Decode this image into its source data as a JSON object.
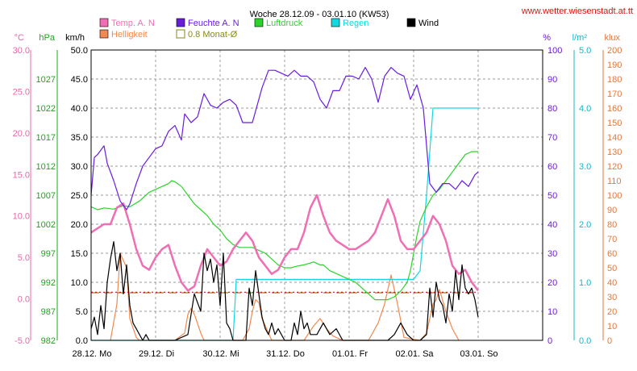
{
  "chart_data": {
    "type": "line",
    "title": "Woche 28.12.09 - 03.01.10 (KW53)",
    "source_url": "www.wetter.wiesenstadt.at.tt",
    "unit_labels": {
      "temp": "°C",
      "pressure": "hPa",
      "wind": "km/h",
      "humidity": "%",
      "rain": "l/m²",
      "lux": "klux"
    },
    "legend": [
      {
        "key": "temp",
        "label": "Temp. A. N",
        "color": "#f06eb4"
      },
      {
        "key": "humidity",
        "label": "Feuchte A. N",
        "color": "#6a1be0"
      },
      {
        "key": "pressure",
        "label": "Luftdruck",
        "color": "#2ad42a"
      },
      {
        "key": "rain",
        "label": "Regen",
        "color": "#12d8e0"
      },
      {
        "key": "wind",
        "label": "Wind",
        "color": "#000000"
      },
      {
        "key": "lux",
        "label": "Helligkeit",
        "color": "#f08a50"
      },
      {
        "key": "avg",
        "label": "0.8 Monat-Ø",
        "color": "#8a8a10"
      }
    ],
    "axes": {
      "temp": {
        "min": -5,
        "max": 30,
        "ticks": [
          "-5.0",
          "0.0",
          "5.0",
          "10.0",
          "15.0",
          "20.0",
          "25.0",
          "30.0"
        ],
        "color": "#e868a8"
      },
      "pressure": {
        "min": 982,
        "max": 1032,
        "ticks": [
          "982",
          "987",
          "992",
          "997",
          "1002",
          "1007",
          "1012",
          "1017",
          "1022",
          "1027"
        ],
        "color": "#1aa81a"
      },
      "wind": {
        "min": 0,
        "max": 50,
        "ticks": [
          "0.0",
          "5.0",
          "10.0",
          "15.0",
          "20.0",
          "25.0",
          "30.0",
          "35.0",
          "40.0",
          "45.0",
          "50.0"
        ],
        "color": "#000000"
      },
      "humidity": {
        "min": 0,
        "max": 100,
        "ticks": [
          "0",
          "10",
          "20",
          "30",
          "40",
          "50",
          "60",
          "70",
          "80",
          "90",
          "100"
        ],
        "color": "#6a1be0"
      },
      "rain": {
        "min": 0,
        "max": 5,
        "ticks": [
          "0.0",
          "1.0",
          "2.0",
          "3.0",
          "4.0",
          "5.0"
        ],
        "color": "#12b8c8"
      },
      "lux": {
        "min": 0,
        "max": 200,
        "ticks": [
          "0",
          "10",
          "20",
          "30",
          "40",
          "50",
          "60",
          "70",
          "80",
          "90",
          "100",
          "110",
          "120",
          "130",
          "140",
          "150",
          "160",
          "170",
          "180",
          "190",
          "200"
        ],
        "color": "#e07840"
      }
    },
    "x_range": [
      0,
      7
    ],
    "x_labels": [
      "28.12.  Mo",
      "29.12.  Di",
      "30.12.  Mi",
      "31.12.  Do",
      "01.01.  Fr",
      "02.01.  Sa",
      "03.01.  So"
    ],
    "grid": true,
    "series": [
      {
        "key": "humidity",
        "x": [
          0.0,
          0.05,
          0.1,
          0.2,
          0.25,
          0.35,
          0.45,
          0.55,
          0.6,
          0.7,
          0.8,
          0.9,
          1.0,
          1.1,
          1.2,
          1.3,
          1.4,
          1.45,
          1.55,
          1.65,
          1.75,
          1.85,
          1.95,
          2.05,
          2.15,
          2.25,
          2.35,
          2.5,
          2.65,
          2.75,
          2.85,
          2.95,
          3.05,
          3.15,
          3.25,
          3.35,
          3.45,
          3.55,
          3.65,
          3.75,
          3.85,
          3.95,
          4.05,
          4.15,
          4.25,
          4.35,
          4.45,
          4.55,
          4.65,
          4.75,
          4.85,
          4.95,
          5.05,
          5.15,
          5.25,
          5.35,
          5.45,
          5.55,
          5.65,
          5.75,
          5.85,
          5.95,
          6.0
        ],
        "y": [
          50,
          63,
          64,
          67,
          61,
          55,
          48,
          45,
          47,
          54,
          60,
          63,
          66,
          67,
          72,
          74,
          69,
          78,
          75,
          77,
          85,
          81,
          80,
          82,
          83,
          81,
          75,
          75,
          87,
          93,
          93,
          92,
          91,
          93,
          91,
          91,
          89,
          83,
          80,
          86,
          86,
          91,
          91,
          90,
          94,
          90,
          82,
          91,
          94,
          92,
          91,
          83,
          88,
          80,
          54,
          51,
          54,
          54,
          52,
          55,
          53,
          57,
          58
        ]
      },
      {
        "key": "pressure",
        "x": [
          0.0,
          0.1,
          0.2,
          0.35,
          0.5,
          0.6,
          0.75,
          0.9,
          1.0,
          1.1,
          1.2,
          1.25,
          1.3,
          1.4,
          1.5,
          1.6,
          1.7,
          1.8,
          1.9,
          2.0,
          2.1,
          2.2,
          2.3,
          2.4,
          2.5,
          2.6,
          2.7,
          2.8,
          2.9,
          3.0,
          3.1,
          3.2,
          3.3,
          3.45,
          3.55,
          3.6,
          3.7,
          3.8,
          3.9,
          4.0,
          4.1,
          4.2,
          4.3,
          4.4,
          4.5,
          4.6,
          4.7,
          4.8,
          4.9,
          4.95,
          5.0,
          5.05,
          5.1,
          5.2,
          5.3,
          5.4,
          5.5,
          5.6,
          5.7,
          5.8,
          5.9,
          6.0
        ],
        "y": [
          1005,
          1004.5,
          1004.8,
          1004.6,
          1005.2,
          1005,
          1006,
          1007.5,
          1008,
          1008.5,
          1009,
          1009.5,
          1009.3,
          1008.5,
          1007,
          1005.5,
          1004.5,
          1003.5,
          1002,
          1001,
          999.5,
          998.5,
          998,
          998,
          998,
          997.5,
          997,
          996,
          995,
          994.5,
          994.5,
          994.8,
          995,
          995.5,
          995,
          995,
          994,
          993.5,
          993,
          992.5,
          992,
          991,
          990,
          989,
          989,
          989,
          989.5,
          990.5,
          992,
          994,
          997,
          1000,
          1002.5,
          1005,
          1007,
          1008,
          1009.5,
          1011,
          1012.5,
          1014,
          1014.5,
          1014.5
        ]
      },
      {
        "key": "temp",
        "x": [
          0.0,
          0.1,
          0.2,
          0.3,
          0.4,
          0.5,
          0.6,
          0.7,
          0.8,
          0.9,
          1.0,
          1.1,
          1.2,
          1.3,
          1.4,
          1.5,
          1.6,
          1.7,
          1.8,
          1.9,
          2.0,
          2.1,
          2.2,
          2.3,
          2.4,
          2.5,
          2.6,
          2.7,
          2.8,
          2.9,
          3.0,
          3.1,
          3.2,
          3.3,
          3.4,
          3.5,
          3.6,
          3.7,
          3.8,
          3.9,
          4.0,
          4.1,
          4.2,
          4.3,
          4.4,
          4.5,
          4.6,
          4.7,
          4.8,
          4.9,
          5.0,
          5.1,
          5.2,
          5.3,
          5.4,
          5.5,
          5.6,
          5.7,
          5.8,
          5.9,
          6.0
        ],
        "y": [
          8,
          8.5,
          9,
          9,
          11,
          11.5,
          9,
          6,
          4,
          3.5,
          5,
          6,
          6.5,
          4,
          2,
          1,
          1.5,
          4,
          6,
          5,
          4,
          4.5,
          6,
          7,
          8,
          7,
          5,
          4,
          3,
          3.5,
          5,
          6,
          6,
          8,
          11,
          12.5,
          10,
          8,
          7,
          6.5,
          6,
          6,
          6.5,
          7,
          8,
          10,
          12,
          10,
          7,
          6,
          6,
          7,
          8,
          10,
          9,
          7,
          4,
          3,
          3.5,
          2,
          1
        ]
      },
      {
        "key": "rain",
        "x": [
          0,
          2.2,
          2.25,
          3.0,
          4.0,
          5.0,
          5.1,
          5.2,
          5.3,
          5.5,
          6.0
        ],
        "y": [
          0,
          0,
          1.05,
          1.05,
          1.05,
          1.05,
          1.2,
          2.5,
          4.0,
          4.0,
          4.0
        ]
      },
      {
        "key": "avg_temp",
        "x": [
          0,
          6.0
        ],
        "y": [
          0.8,
          0.8
        ]
      },
      {
        "key": "avg_wind",
        "x": [
          0,
          6.0
        ],
        "y": [
          8.2,
          8.2
        ]
      },
      {
        "key": "wind",
        "x": [
          0.0,
          0.05,
          0.1,
          0.15,
          0.2,
          0.25,
          0.3,
          0.35,
          0.4,
          0.45,
          0.5,
          0.55,
          0.6,
          0.65,
          0.7,
          0.75,
          0.8,
          0.85,
          0.9,
          1.3,
          1.5,
          1.6,
          1.7,
          1.75,
          1.8,
          1.85,
          1.9,
          1.95,
          2.0,
          2.05,
          2.1,
          2.15,
          2.2,
          2.4,
          2.45,
          2.5,
          2.55,
          2.6,
          2.65,
          2.7,
          2.75,
          2.8,
          2.85,
          2.9,
          2.95,
          3.0,
          3.1,
          3.15,
          3.2,
          3.25,
          3.3,
          3.35,
          3.4,
          3.5,
          3.6,
          3.7,
          3.8,
          3.9,
          4.6,
          4.7,
          4.8,
          4.9,
          5.0,
          5.1,
          5.2,
          5.25,
          5.3,
          5.35,
          5.4,
          5.45,
          5.5,
          5.55,
          5.6,
          5.65,
          5.7,
          5.75,
          5.8,
          5.85,
          5.9,
          5.95,
          6.0
        ],
        "y": [
          2,
          4,
          1,
          6,
          2,
          10,
          14,
          17,
          12,
          15,
          8,
          13,
          6,
          3,
          2,
          1,
          0,
          1,
          0,
          0,
          1,
          8,
          5,
          15,
          12,
          14,
          10,
          13,
          6,
          15,
          3,
          2,
          0,
          0,
          9,
          6,
          12,
          8,
          4,
          2,
          1,
          3,
          1,
          2,
          1,
          0,
          0,
          3,
          1,
          5,
          2,
          3,
          1,
          1,
          3,
          1,
          2,
          0,
          0,
          1,
          3,
          1,
          0,
          0,
          1,
          9,
          4,
          10,
          7,
          6,
          3,
          8,
          5,
          12,
          7,
          13,
          9,
          8,
          9,
          7,
          4
        ]
      },
      {
        "key": "lux",
        "x": [
          0.3,
          0.4,
          0.45,
          0.5,
          0.55,
          0.6,
          0.7,
          0.75,
          1.3,
          1.45,
          1.5,
          1.55,
          1.6,
          1.7,
          1.75,
          2.35,
          2.45,
          2.5,
          2.55,
          2.6,
          2.65,
          2.8,
          3.3,
          3.45,
          3.55,
          3.65,
          3.75,
          3.9,
          4.3,
          4.45,
          4.55,
          4.65,
          4.75,
          4.85,
          5.1,
          5.2,
          5.3,
          5.35,
          5.4,
          5.5,
          5.6,
          5.7
        ],
        "y": [
          0,
          25,
          60,
          55,
          50,
          15,
          2,
          0,
          0,
          5,
          18,
          22,
          18,
          5,
          0,
          0,
          8,
          20,
          28,
          26,
          15,
          0,
          0,
          10,
          15,
          8,
          3,
          0,
          0,
          12,
          25,
          45,
          25,
          2,
          0,
          5,
          25,
          28,
          35,
          20,
          8,
          0
        ]
      }
    ]
  }
}
